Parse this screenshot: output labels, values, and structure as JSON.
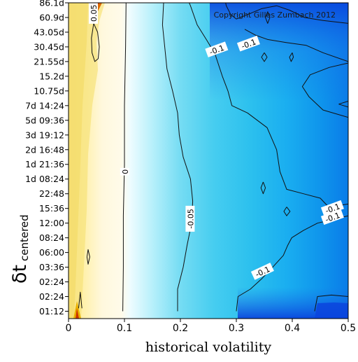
{
  "chart_data": {
    "type": "heatmap",
    "title": "",
    "copyright": "Copyright Gilles Zumbach 2012",
    "xlabel": "historical volatility",
    "ylabel_main": "δt",
    "ylabel_sub": "centered",
    "xlim": [
      0,
      0.5
    ],
    "x_ticks": [
      "0",
      "0.1",
      "0.2",
      "0.3",
      "0.4",
      "0.5"
    ],
    "y_ticks": [
      "01:12",
      "02:24",
      "02:24",
      "03:36",
      "06:00",
      "08:24",
      "12:00",
      "15:36",
      "22:48",
      "1d 08:24",
      "1d 21:36",
      "2d 16:48",
      "3d 19:12",
      "5d 09:36",
      "7d 14:24",
      "10.75d",
      "15.2d",
      "21.55d",
      "30.45d",
      "43.05d",
      "60.9d",
      "86.1d"
    ],
    "colormap": [
      "#0033dd",
      "#00a0ee",
      "#33ccee",
      "#e8fbff",
      "#fff8d8",
      "#f5e17a",
      "#e6b600",
      "#d04000",
      "#aa0000"
    ],
    "contour_labels": [
      {
        "text": "0.05",
        "x": 0.045,
        "y": 20.3,
        "rotate": -90
      },
      {
        "text": "0",
        "x": 0.101,
        "y": 9.5,
        "rotate": -90
      },
      {
        "text": "-0.05",
        "x": 0.218,
        "y": 6.3,
        "rotate": -90
      },
      {
        "text": "-0.1",
        "x": 0.265,
        "y": 17.8,
        "rotate": -20
      },
      {
        "text": "-0.1",
        "x": 0.322,
        "y": 18.2,
        "rotate": -20
      },
      {
        "text": "-0.1",
        "x": 0.347,
        "y": 2.7,
        "rotate": -25
      },
      {
        "text": "-0.1",
        "x": 0.472,
        "y": 7.0,
        "rotate": -20
      },
      {
        "text": "-0.1",
        "x": 0.472,
        "y": 6.4,
        "rotate": -20
      }
    ],
    "contours": [
      {
        "level": "0.05",
        "points": [
          [
            0.018,
            0.2
          ],
          [
            0.021,
            1.3
          ],
          [
            0.024,
            0.2
          ]
        ]
      },
      {
        "level": "0.05",
        "points": [
          [
            0.033,
            3.7
          ],
          [
            0.035,
            3.2
          ],
          [
            0.038,
            3.7
          ],
          [
            0.035,
            4.2
          ],
          [
            0.033,
            3.7
          ]
        ]
      },
      {
        "level": "0.05",
        "points": [
          [
            0.045,
            19.6
          ],
          [
            0.052,
            19.0
          ],
          [
            0.055,
            18.0
          ],
          [
            0.053,
            17.2
          ],
          [
            0.047,
            17.0
          ],
          [
            0.042,
            17.6
          ],
          [
            0.041,
            18.6
          ],
          [
            0.045,
            19.6
          ]
        ]
      },
      {
        "level": "0.05",
        "points": [
          [
            0.04,
            21.5
          ],
          [
            0.06,
            21.0
          ],
          [
            0.068,
            21.5
          ]
        ]
      },
      {
        "level": "0",
        "points": [
          [
            0.097,
            0.0
          ],
          [
            0.098,
            3.0
          ],
          [
            0.098,
            6.5
          ],
          [
            0.1,
            10.0
          ],
          [
            0.1,
            14.0
          ],
          [
            0.102,
            18.0
          ],
          [
            0.103,
            21.5
          ]
        ]
      },
      {
        "level": "-0.05",
        "points": [
          [
            0.195,
            0.0
          ],
          [
            0.195,
            1.5
          ],
          [
            0.205,
            3.0
          ],
          [
            0.212,
            4.5
          ],
          [
            0.22,
            6.0
          ],
          [
            0.222,
            7.5
          ],
          [
            0.218,
            9.0
          ],
          [
            0.205,
            10.5
          ],
          [
            0.198,
            12.0
          ],
          [
            0.195,
            13.5
          ],
          [
            0.186,
            15.0
          ],
          [
            0.176,
            16.5
          ],
          [
            0.172,
            18.0
          ],
          [
            0.168,
            19.5
          ],
          [
            0.17,
            21.0
          ],
          [
            0.176,
            21.5
          ]
        ]
      },
      {
        "level": "-0.1",
        "points": [
          [
            0.3,
            0.0
          ],
          [
            0.303,
            1.0
          ],
          [
            0.325,
            1.5
          ],
          [
            0.345,
            2.2
          ],
          [
            0.365,
            3.0
          ],
          [
            0.384,
            3.8
          ],
          [
            0.392,
            4.5
          ],
          [
            0.399,
            5.0
          ],
          [
            0.42,
            5.5
          ],
          [
            0.445,
            6.0
          ],
          [
            0.478,
            6.3
          ],
          [
            0.5,
            6.5
          ]
        ]
      },
      {
        "level": "-0.1",
        "points": [
          [
            0.5,
            7.3
          ],
          [
            0.465,
            7.1
          ],
          [
            0.45,
            7.7
          ],
          [
            0.42,
            8.0
          ],
          [
            0.39,
            8.3
          ],
          [
            0.378,
            9.5
          ],
          [
            0.372,
            11.0
          ],
          [
            0.355,
            12.5
          ],
          [
            0.32,
            13.5
          ],
          [
            0.292,
            14.0
          ],
          [
            0.285,
            15.0
          ],
          [
            0.275,
            16.0
          ],
          [
            0.262,
            17.5
          ],
          [
            0.248,
            18.4
          ],
          [
            0.23,
            19.5
          ],
          [
            0.218,
            20.8
          ],
          [
            0.21,
            21.5
          ]
        ]
      },
      {
        "level": "-0.1",
        "points": [
          [
            0.5,
            13.2
          ],
          [
            0.455,
            13.7
          ],
          [
            0.43,
            14.6
          ],
          [
            0.418,
            15.3
          ],
          [
            0.432,
            16.1
          ],
          [
            0.466,
            16.6
          ],
          [
            0.5,
            16.9
          ]
        ]
      },
      {
        "level": "-0.1",
        "points": [
          [
            0.5,
            17.0
          ],
          [
            0.455,
            17.6
          ],
          [
            0.425,
            18.1
          ],
          [
            0.388,
            18.3
          ],
          [
            0.356,
            18.5
          ],
          [
            0.334,
            18.8
          ],
          [
            0.315,
            19.2
          ]
        ]
      },
      {
        "level": "-0.15",
        "points": [
          [
            0.44,
            0.0
          ],
          [
            0.445,
            1.0
          ],
          [
            0.47,
            1.1
          ],
          [
            0.5,
            1.0
          ]
        ]
      },
      {
        "level": "-0.15",
        "points": [
          [
            0.483,
            14.1
          ],
          [
            0.5,
            13.9
          ],
          [
            0.5,
            14.3
          ],
          [
            0.483,
            14.1
          ]
        ]
      },
      {
        "level": "-0.15",
        "points": [
          [
            0.278,
            21.5
          ],
          [
            0.282,
            20.8
          ],
          [
            0.29,
            20.2
          ],
          [
            0.3,
            19.9
          ],
          [
            0.32,
            20.2
          ],
          [
            0.345,
            20.6
          ],
          [
            0.372,
            20.8
          ],
          [
            0.395,
            20.5
          ],
          [
            0.422,
            20.0
          ],
          [
            0.455,
            19.8
          ],
          [
            0.5,
            19.6
          ]
        ]
      },
      {
        "level": "-0.15",
        "points": [
          [
            0.356,
            20.4
          ],
          [
            0.36,
            20.0
          ],
          [
            0.356,
            19.6
          ],
          [
            0.352,
            20.0
          ],
          [
            0.356,
            20.4
          ]
        ]
      },
      {
        "level": "-0.15",
        "points": [
          [
            0.35,
            17.6
          ],
          [
            0.355,
            17.3
          ],
          [
            0.35,
            17.0
          ],
          [
            0.345,
            17.3
          ],
          [
            0.35,
            17.6
          ]
        ]
      },
      {
        "level": "-0.15",
        "points": [
          [
            0.4,
            17.6
          ],
          [
            0.402,
            17.3
          ],
          [
            0.398,
            17.0
          ],
          [
            0.395,
            17.3
          ],
          [
            0.4,
            17.6
          ]
        ]
      },
      {
        "level": "-0.15",
        "points": [
          [
            0.348,
            8.8
          ],
          [
            0.352,
            8.4
          ],
          [
            0.348,
            8.0
          ],
          [
            0.344,
            8.4
          ],
          [
            0.348,
            8.8
          ]
        ]
      },
      {
        "level": "-0.15",
        "points": [
          [
            0.39,
            7.1
          ],
          [
            0.396,
            6.8
          ],
          [
            0.39,
            6.5
          ],
          [
            0.385,
            6.8
          ],
          [
            0.39,
            7.1
          ]
        ]
      }
    ]
  }
}
